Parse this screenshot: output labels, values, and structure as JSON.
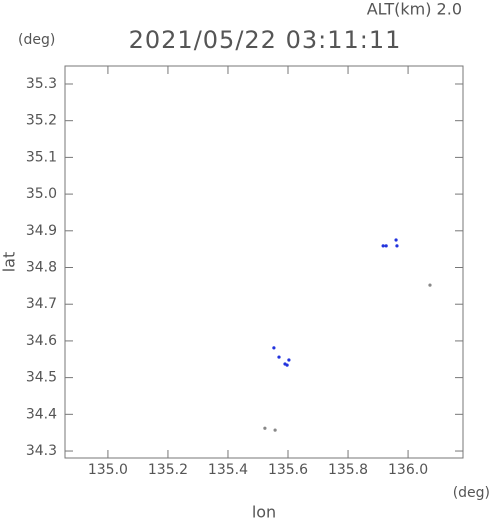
{
  "chart_data": {
    "type": "scatter",
    "title": "2021/05/22 03:11:11",
    "subtitle": "ALT(km) 2.0",
    "y_unit": "(deg)",
    "x_unit": "(deg)",
    "x_label": "lon",
    "y_label": "lat",
    "xlim": [
      134.857,
      136.183
    ],
    "ylim": [
      34.281,
      35.349
    ],
    "xticks": [
      {
        "value": 135,
        "label": "135.0"
      },
      135.2,
      135.4,
      135.6,
      135.8,
      {
        "value": 136,
        "label": "136.0"
      }
    ],
    "yticks": [
      34.3,
      34.4,
      34.5,
      34.6,
      34.7,
      34.8,
      34.9,
      {
        "value": 35,
        "label": "35.0"
      },
      35.1,
      35.2,
      35.3
    ],
    "series": [
      {
        "color": "#2233dd",
        "x": [
          135.917,
          135.927,
          135.96,
          135.963,
          135.553,
          135.57,
          135.59,
          135.597,
          135.603
        ],
        "values": [
          34.859,
          34.859,
          34.875,
          34.859,
          34.581,
          34.556,
          34.537,
          34.534,
          34.548
        ]
      },
      {
        "color": "#888888",
        "x": [
          135.523,
          135.557,
          136.073
        ],
        "values": [
          34.362,
          34.357,
          34.752
        ]
      }
    ]
  }
}
